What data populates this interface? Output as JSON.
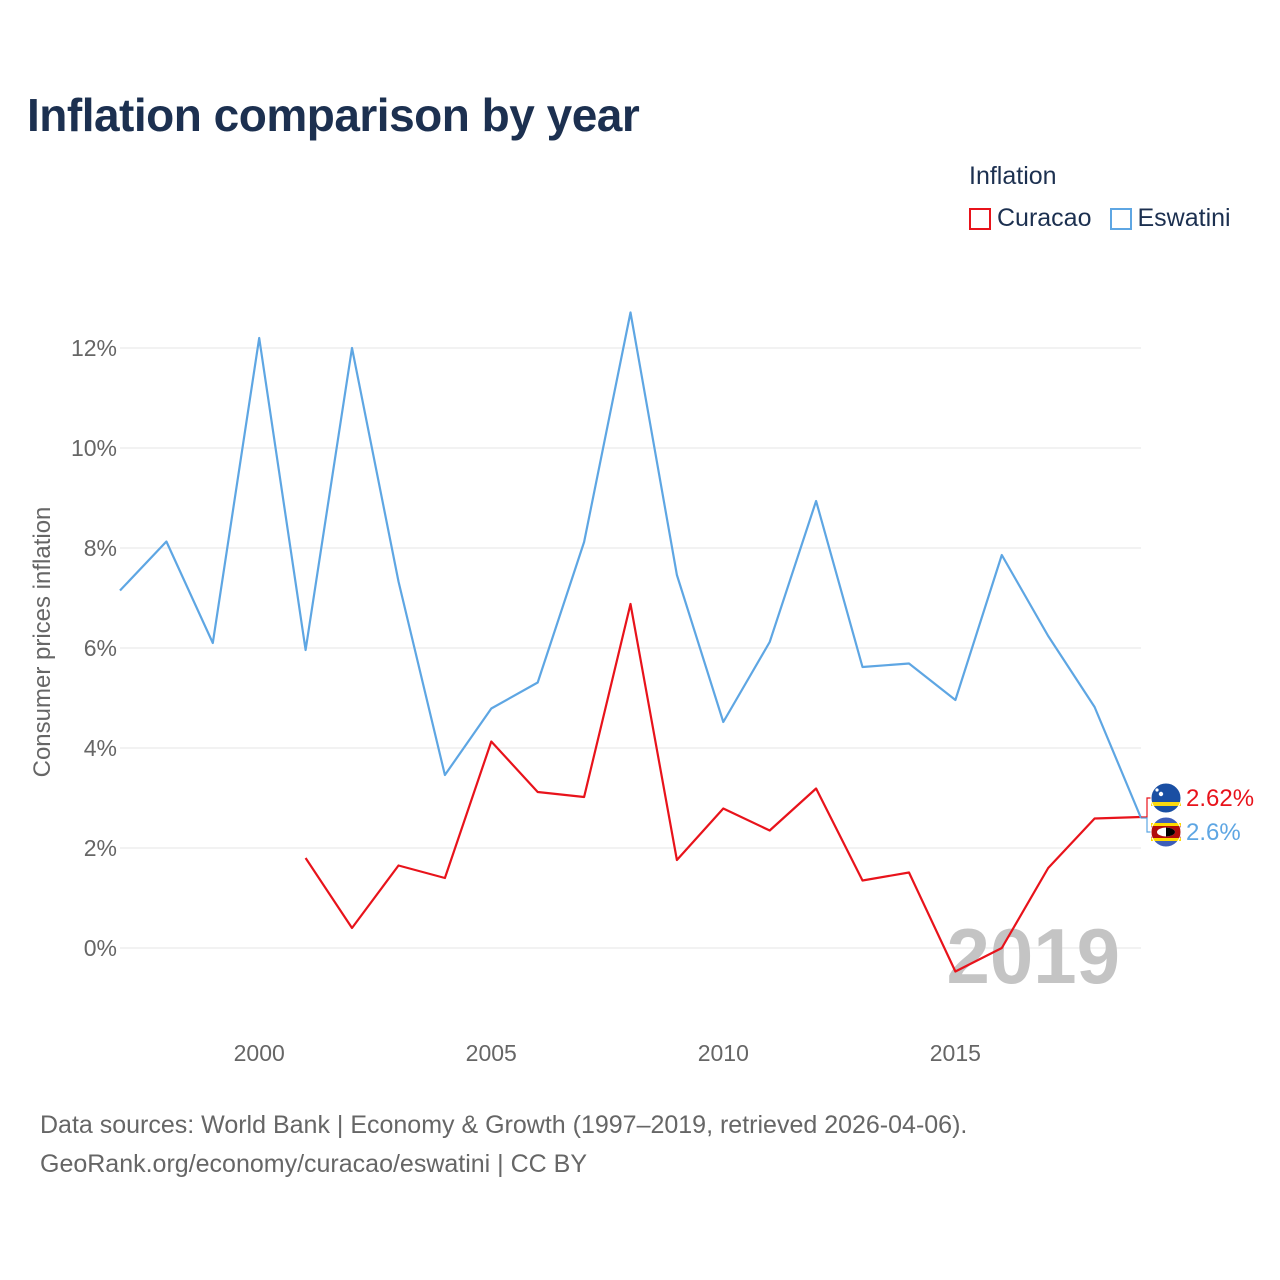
{
  "chart_data": {
    "type": "line",
    "title": "Inflation comparison by year",
    "legend_title": "Inflation",
    "ylabel": "Consumer prices inflation",
    "xlabel": "",
    "xlim": [
      1997,
      2019
    ],
    "ylim": [
      -1,
      13
    ],
    "x_ticks": [
      2000,
      2005,
      2010,
      2015
    ],
    "y_ticks": [
      0,
      2,
      4,
      6,
      8,
      10,
      12
    ],
    "y_tick_labels": [
      "0%",
      "2%",
      "4%",
      "6%",
      "8%",
      "10%",
      "12%"
    ],
    "x": [
      1997,
      1998,
      1999,
      2000,
      2001,
      2002,
      2003,
      2004,
      2005,
      2006,
      2007,
      2008,
      2009,
      2010,
      2011,
      2012,
      2013,
      2014,
      2015,
      2016,
      2017,
      2018,
      2019
    ],
    "series": [
      {
        "name": "Curacao",
        "color": "#e8131b",
        "values": [
          null,
          null,
          null,
          null,
          1.8,
          0.4,
          1.65,
          1.4,
          4.13,
          3.12,
          3.02,
          6.88,
          1.76,
          2.79,
          2.35,
          3.19,
          1.35,
          1.51,
          -0.47,
          0.0,
          1.6,
          2.59,
          2.62
        ],
        "end_label": "2.62%",
        "flag": "curacao-flag"
      },
      {
        "name": "Eswatini",
        "color": "#5ea6e3",
        "values": [
          7.15,
          8.13,
          6.1,
          12.2,
          5.96,
          12.0,
          7.33,
          3.46,
          4.79,
          5.31,
          8.12,
          12.71,
          7.46,
          4.52,
          6.12,
          8.94,
          5.62,
          5.69,
          4.96,
          7.86,
          6.24,
          4.82,
          2.6
        ],
        "end_label": "2.6%",
        "flag": "eswatini-flag"
      }
    ],
    "watermark": "2019"
  },
  "footer": {
    "line1": "Data sources: World Bank | Economy & Growth (1997–2019, retrieved 2026-04-06).",
    "line2": "GeoRank.org/economy/curacao/eswatini | CC BY"
  }
}
